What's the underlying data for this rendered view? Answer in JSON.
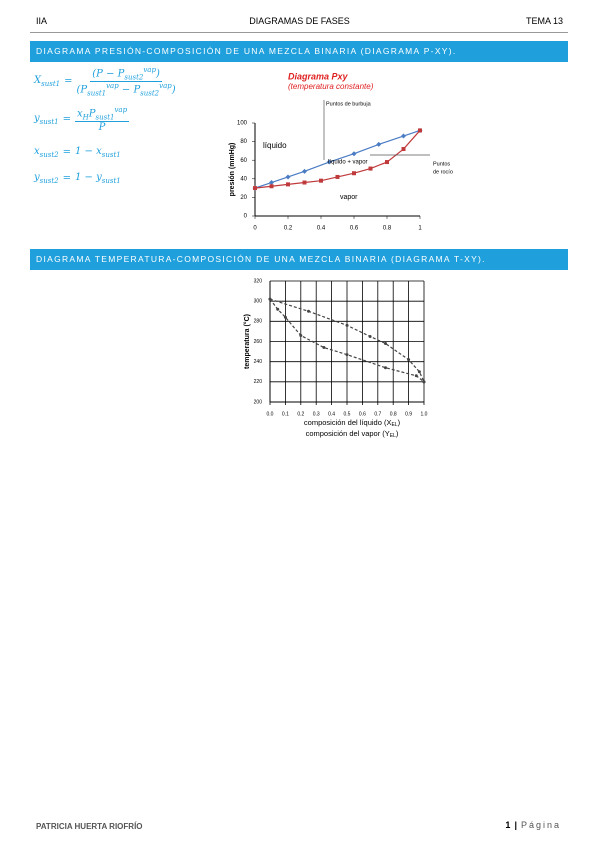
{
  "header": {
    "left": "IIA",
    "center": "DIAGRAMAS DE FASES",
    "right": "TEMA 13"
  },
  "sections": [
    {
      "title": "DIAGRAMA PRESIÓN-COMPOSICIÓN DE UNA MEZCLA BINARIA (DIAGRAMA P-XY)."
    },
    {
      "title": "DIAGRAMA TEMPERATURA-COMPOSICIÓN DE UNA MEZCLA BINARIA (DIAGRAMA T-XY)."
    }
  ],
  "formulas": [
    {
      "lhs": [
        {
          "t": "X"
        },
        {
          "sub": "sust1"
        }
      ],
      "eq": "=",
      "num": [
        {
          "t": "(P − P"
        },
        {
          "sub": "sust2"
        },
        {
          "sup": "vap"
        },
        {
          "t": ")"
        }
      ],
      "den": [
        {
          "t": "(P"
        },
        {
          "sub": "sust1"
        },
        {
          "sup": "vap"
        },
        {
          "t": " − P"
        },
        {
          "sub": "sust2"
        },
        {
          "sup": "vap"
        },
        {
          "t": ")"
        }
      ]
    },
    {
      "lhs": [
        {
          "t": "y"
        },
        {
          "sub": "sust1"
        }
      ],
      "eq": "=",
      "num": [
        {
          "t": "x"
        },
        {
          "sub": "H"
        },
        {
          "t": "P"
        },
        {
          "sub": "sust1"
        },
        {
          "sup": "vap"
        }
      ],
      "den": [
        {
          "t": "P"
        }
      ]
    },
    {
      "lhs": [
        {
          "t": "x"
        },
        {
          "sub": "sust2"
        }
      ],
      "eq": "=",
      "rhs": [
        {
          "t": "1 − x"
        },
        {
          "sub": "sust1"
        }
      ]
    },
    {
      "lhs": [
        {
          "t": "y"
        },
        {
          "sub": "sust2"
        }
      ],
      "eq": "=",
      "rhs": [
        {
          "t": "1 − y"
        },
        {
          "sub": "sust1"
        }
      ]
    }
  ],
  "charts": [
    {
      "type": "line",
      "title": "Diagrama Pxy",
      "subtitle": "(temperatura constante)",
      "ylabel": "presión (mmHg)",
      "xlim": [
        0,
        1
      ],
      "xticks": [
        0,
        0.2,
        0.4,
        0.6,
        0.8,
        1
      ],
      "ylim": [
        0,
        100
      ],
      "yticks": [
        0,
        20,
        40,
        60,
        80,
        100
      ],
      "grid": false,
      "series": [
        {
          "color": "#4a7cc4",
          "marker": "diamond",
          "dashed": false,
          "x": [
            0,
            0.1,
            0.2,
            0.3,
            0.45,
            0.6,
            0.75,
            0.9,
            1
          ],
          "values": [
            30,
            36,
            42,
            48,
            58,
            67,
            77,
            86,
            92
          ]
        },
        {
          "color": "#c0393b",
          "marker": "square",
          "dashed": false,
          "x": [
            0,
            0.1,
            0.2,
            0.3,
            0.4,
            0.5,
            0.6,
            0.7,
            0.8,
            0.9,
            1
          ],
          "values": [
            30,
            32,
            34,
            36,
            38,
            42,
            46,
            51,
            58,
            72,
            92
          ]
        }
      ],
      "labels": [
        "líquido",
        "líquido + vapor",
        "vapor"
      ],
      "annotations": [
        {
          "text": "Puntos de burbuja"
        },
        {
          "lines": [
            "Puntos",
            "de rocío"
          ]
        }
      ]
    },
    {
      "type": "line",
      "ylabel": "temperatura (°C)",
      "xlabel": [
        [
          {
            "t": "composición del líquido (X"
          },
          {
            "sub": "EL"
          },
          {
            "t": ")"
          }
        ],
        [
          {
            "t": "composición del vapor (Y"
          },
          {
            "sub": "EL"
          },
          {
            "t": ")"
          }
        ]
      ],
      "xlim": [
        0,
        1
      ],
      "xticks": [
        {
          "value": 0,
          "label": "0.0"
        },
        0.1,
        0.2,
        0.3,
        0.4,
        0.5,
        0.6,
        0.7,
        0.8,
        0.9,
        {
          "value": 1,
          "label": "1.0"
        }
      ],
      "ylim": [
        200,
        320
      ],
      "yticks": [
        200,
        220,
        240,
        260,
        280,
        300,
        320
      ],
      "grid": true,
      "series": [
        {
          "color": "#444",
          "marker": "dot",
          "dashed": true,
          "x": [
            0,
            0.25,
            0.5,
            0.65,
            0.75,
            0.9,
            0.97,
            1
          ],
          "values": [
            302,
            290,
            276,
            265,
            258,
            242,
            230,
            220
          ]
        },
        {
          "color": "#444",
          "marker": "dot",
          "dashed": true,
          "x": [
            0,
            0.05,
            0.1,
            0.2,
            0.35,
            0.5,
            0.75,
            0.95,
            1
          ],
          "values": [
            302,
            292,
            284,
            266,
            254,
            247,
            234,
            226,
            220
          ]
        }
      ]
    }
  ],
  "footer": {
    "author": "PATRICIA HUERTA RIOFRÍO",
    "page": 1,
    "separator": "|",
    "word": "Página"
  }
}
